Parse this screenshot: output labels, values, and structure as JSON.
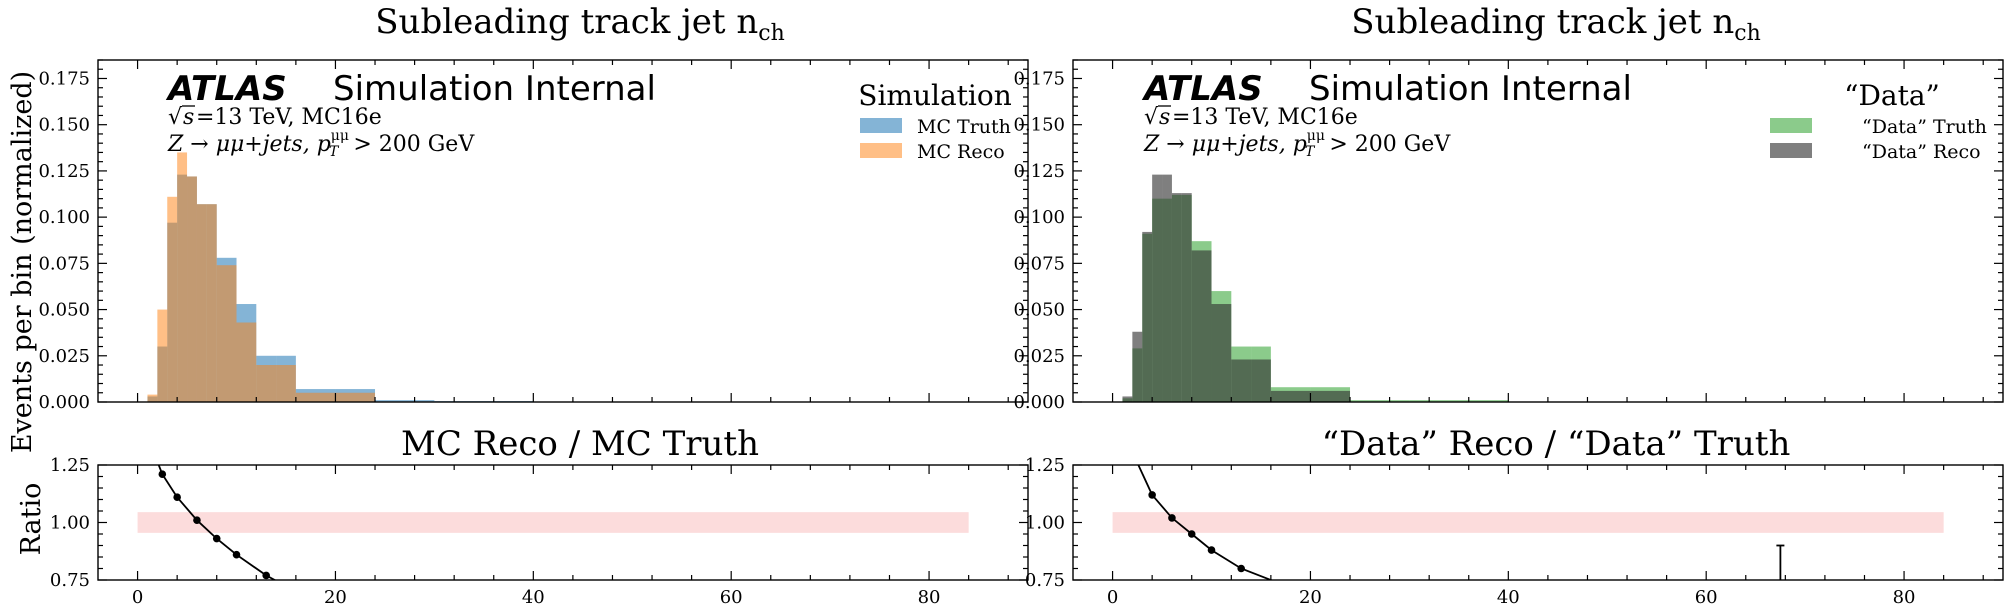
{
  "figure": {
    "ylabel_main": "Events per bin (normalized)",
    "ylabel_ratio": "Ratio"
  },
  "panels": [
    {
      "title": "Subleading track jet n",
      "title_sub": "ch",
      "atlas": "ATLAS",
      "atlas_suffix": "Simulation Internal",
      "energy_text": "=13 TeV, MC16e",
      "process_text": "Z → μμ+jets, p",
      "process_sup": "μμ",
      "process_sub": "T",
      "process_tail": " > 200 GeV",
      "legend_title": "Simulation",
      "legend": [
        {
          "label": "MC Truth",
          "color": "#1f77b4"
        },
        {
          "label": "MC Reco",
          "color": "#ff7f0e"
        }
      ],
      "ratio_title": "MC Reco / MC Truth"
    },
    {
      "title": "Subleading track jet n",
      "title_sub": "ch",
      "atlas": "ATLAS",
      "atlas_suffix": "Simulation Internal",
      "energy_text": "=13 TeV, MC16e",
      "process_text": "Z → μμ+jets, p",
      "process_sup": "μμ",
      "process_sub": "T",
      "process_tail": " > 200 GeV",
      "legend_title": "“Data”",
      "legend": [
        {
          "label": "“Data” Truth",
          "color": "#2ca02c"
        },
        {
          "label": "“Data” Reco",
          "color": "#303030"
        }
      ],
      "ratio_title": "“Data” Reco / “Data” Truth"
    }
  ],
  "chart_data": [
    {
      "type": "bar",
      "title": "Subleading track jet n_ch",
      "ylabel": "Events per bin (normalized)",
      "xlim": [
        -4,
        90
      ],
      "ylim": [
        0,
        0.185
      ],
      "x_ticks": [
        0,
        20,
        40,
        60,
        80
      ],
      "y_ticks": [
        0.0,
        0.025,
        0.05,
        0.075,
        0.1,
        0.125,
        0.15,
        0.175
      ],
      "y_tick_labels": [
        "0.000",
        "0.025",
        "0.050",
        "0.075",
        "0.100",
        "0.125",
        "0.150",
        "0.175"
      ],
      "bin_edges": [
        0,
        1,
        2,
        3,
        4,
        5,
        6,
        7,
        8,
        10,
        12,
        14,
        16,
        20,
        24,
        30,
        40,
        60,
        84
      ],
      "series": [
        {
          "name": "MC Truth",
          "color": "#1f77b4",
          "alpha": 0.55,
          "values": [
            0.0,
            0.003,
            0.03,
            0.097,
            0.123,
            0.122,
            0.107,
            0.107,
            0.078,
            0.053,
            0.025,
            0.025,
            0.007,
            0.007,
            0.001,
            0.0005,
            0.0,
            0.0
          ]
        },
        {
          "name": "MC Reco",
          "color": "#ff7f0e",
          "alpha": 0.5,
          "values": [
            0.0,
            0.004,
            0.05,
            0.111,
            0.135,
            0.122,
            0.107,
            0.107,
            0.074,
            0.043,
            0.02,
            0.02,
            0.005,
            0.005,
            0.0,
            0.0,
            0.0,
            0.0
          ]
        }
      ]
    },
    {
      "type": "line",
      "title": "MC Reco / MC Truth",
      "ylabel": "Ratio",
      "xlim": [
        -4,
        90
      ],
      "ylim": [
        0.75,
        1.25
      ],
      "x_ticks": [
        0,
        20,
        40,
        60,
        80
      ],
      "y_ticks": [
        0.75,
        1.0,
        1.25
      ],
      "y_tick_labels": [
        "0.75",
        "1.00",
        "1.25"
      ],
      "band": {
        "from_x": 0,
        "to_x": 84,
        "low": 0.955,
        "high": 1.045,
        "color": "#fcdcdc"
      },
      "x": [
        -1,
        1.5,
        2.5,
        4,
        6,
        8,
        10,
        13,
        16,
        20
      ],
      "values": [
        1.5,
        1.32,
        1.21,
        1.11,
        1.01,
        0.93,
        0.86,
        0.77,
        0.7,
        0.62
      ],
      "markers_x": [
        2.5,
        4,
        6,
        8,
        10,
        13
      ],
      "markers_y": [
        1.21,
        1.11,
        1.01,
        0.93,
        0.86,
        0.77
      ]
    },
    {
      "type": "bar",
      "title": "Subleading track jet n_ch",
      "xlim": [
        -4,
        90
      ],
      "ylim": [
        0,
        0.185
      ],
      "x_ticks": [
        0,
        20,
        40,
        60,
        80
      ],
      "y_ticks": [
        0.0,
        0.025,
        0.05,
        0.075,
        0.1,
        0.125,
        0.15,
        0.175
      ],
      "y_tick_labels": [
        "0.000",
        "0.025",
        "0.050",
        "0.075",
        "0.100",
        "0.125",
        "0.150",
        "0.175"
      ],
      "bin_edges": [
        0,
        1,
        2,
        3,
        4,
        5,
        6,
        7,
        8,
        10,
        12,
        14,
        16,
        20,
        24,
        30,
        40,
        60,
        84
      ],
      "series": [
        {
          "name": "“Data” Truth",
          "color": "#2ca02c",
          "alpha": 0.55,
          "values": [
            0.0,
            0.002,
            0.029,
            0.091,
            0.11,
            0.11,
            0.112,
            0.112,
            0.087,
            0.06,
            0.03,
            0.03,
            0.008,
            0.008,
            0.001,
            0.001,
            0.0,
            0.0
          ]
        },
        {
          "name": "“Data” Reco",
          "color": "#303030",
          "alpha": 0.62,
          "values": [
            0.0,
            0.003,
            0.038,
            0.092,
            0.123,
            0.123,
            0.113,
            0.113,
            0.082,
            0.053,
            0.023,
            0.023,
            0.006,
            0.006,
            0.0,
            0.0,
            0.0,
            0.0
          ]
        }
      ]
    },
    {
      "type": "line",
      "title": "“Data” Reco / “Data” Truth",
      "ylabel": "Ratio",
      "xlim": [
        -4,
        90
      ],
      "ylim": [
        0.75,
        1.25
      ],
      "x_ticks": [
        0,
        20,
        40,
        60,
        80
      ],
      "y_ticks": [
        0.75,
        1.0,
        1.25
      ],
      "y_tick_labels": [
        "0.75",
        "1.00",
        "1.25"
      ],
      "band": {
        "from_x": 0,
        "to_x": 84,
        "low": 0.955,
        "high": 1.045,
        "color": "#fcdcdc"
      },
      "x": [
        1.5,
        2.5,
        4,
        6,
        8,
        10,
        13,
        16,
        20
      ],
      "values": [
        1.37,
        1.26,
        1.12,
        1.02,
        0.95,
        0.88,
        0.8,
        0.75,
        0.69
      ],
      "markers_x": [
        4,
        6,
        8,
        10,
        13
      ],
      "markers_y": [
        1.12,
        1.02,
        0.95,
        0.88,
        0.8
      ],
      "errorbar": {
        "x": 67.5,
        "low": 0.75,
        "high": 0.9
      }
    }
  ]
}
